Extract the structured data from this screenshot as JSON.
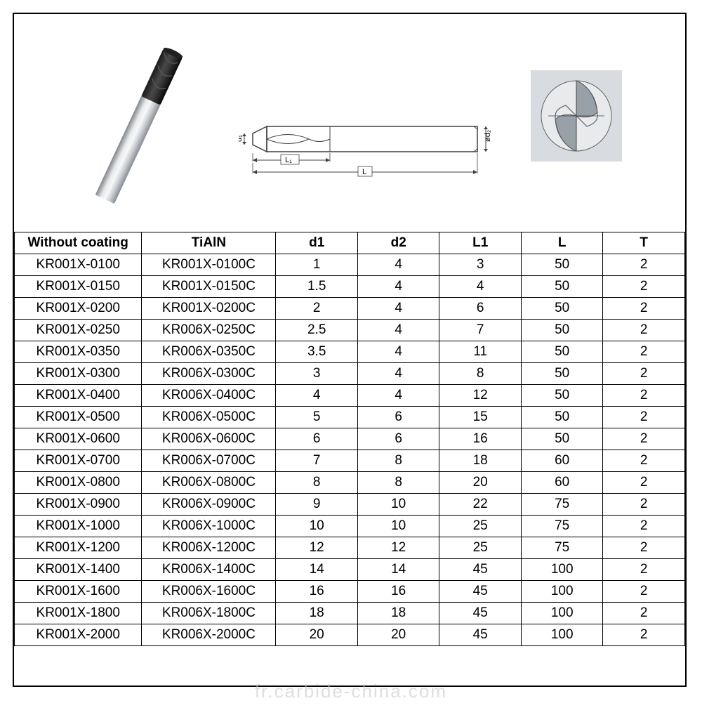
{
  "table": {
    "columns": [
      "Without coating",
      "TiAlN",
      "d1",
      "d2",
      "L1",
      "L",
      "T"
    ],
    "rows": [
      [
        "KR001X-0100",
        "KR001X-0100C",
        "1",
        "4",
        "3",
        "50",
        "2"
      ],
      [
        "KR001X-0150",
        "KR001X-0150C",
        "1.5",
        "4",
        "4",
        "50",
        "2"
      ],
      [
        "KR001X-0200",
        "KR001X-0200C",
        "2",
        "4",
        "6",
        "50",
        "2"
      ],
      [
        "KR001X-0250",
        "KR006X-0250C",
        "2.5",
        "4",
        "7",
        "50",
        "2"
      ],
      [
        "KR001X-0350",
        "KR006X-0350C",
        "3.5",
        "4",
        "11",
        "50",
        "2"
      ],
      [
        "KR001X-0300",
        "KR006X-0300C",
        "3",
        "4",
        "8",
        "50",
        "2"
      ],
      [
        "KR001X-0400",
        "KR006X-0400C",
        "4",
        "4",
        "12",
        "50",
        "2"
      ],
      [
        "KR001X-0500",
        "KR006X-0500C",
        "5",
        "6",
        "15",
        "50",
        "2"
      ],
      [
        "KR001X-0600",
        "KR006X-0600C",
        "6",
        "6",
        "16",
        "50",
        "2"
      ],
      [
        "KR001X-0700",
        "KR006X-0700C",
        "7",
        "8",
        "18",
        "60",
        "2"
      ],
      [
        "KR001X-0800",
        "KR006X-0800C",
        "8",
        "8",
        "20",
        "60",
        "2"
      ],
      [
        "KR001X-0900",
        "KR006X-0900C",
        "9",
        "10",
        "22",
        "75",
        "2"
      ],
      [
        "KR001X-1000",
        "KR006X-1000C",
        "10",
        "10",
        "25",
        "75",
        "2"
      ],
      [
        "KR001X-1200",
        "KR006X-1200C",
        "12",
        "12",
        "25",
        "75",
        "2"
      ],
      [
        "KR001X-1400",
        "KR006X-1400C",
        "14",
        "14",
        "45",
        "100",
        "2"
      ],
      [
        "KR001X-1600",
        "KR006X-1600C",
        "16",
        "16",
        "45",
        "100",
        "2"
      ],
      [
        "KR001X-1800",
        "KR006X-1800C",
        "18",
        "18",
        "45",
        "100",
        "2"
      ],
      [
        "KR001X-2000",
        "KR006X-2000C",
        "20",
        "20",
        "45",
        "100",
        "2"
      ]
    ]
  },
  "diagram_labels": {
    "d1": "d₁",
    "L1": "L₁",
    "L": "L",
    "d2": "ød₂"
  },
  "watermark": "fr.carbide-china.com",
  "colors": {
    "border": "#000000",
    "background": "#ffffff",
    "photo_tip": "#2a2a2a",
    "photo_shank": "#c8ccd0",
    "diagram_stroke": "#404040",
    "cross_section_bg": "#d8dce0",
    "cross_section_shape": "#808890",
    "watermark": "rgba(200,200,200,0.6)"
  }
}
